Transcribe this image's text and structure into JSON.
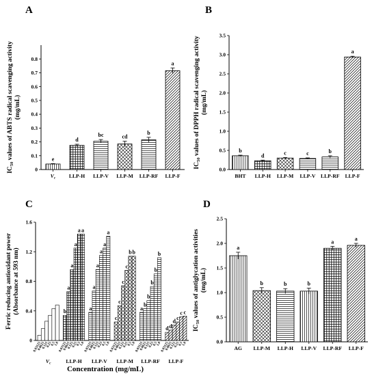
{
  "chart_data": [
    {
      "panel": "A",
      "type": "bar",
      "ylabel_main": "IC50 values of ABTS radical scavenging activity",
      "ylabel_unit": "(mg/mL)",
      "ylim": [
        0,
        0.9
      ],
      "yticks": [
        "0",
        "0.1",
        "0.2",
        "0.3",
        "0.4",
        "0.5",
        "0.6",
        "0.7",
        "0.8"
      ],
      "categories": [
        "Vc",
        "LLP-H",
        "LLP-V",
        "LLP-M",
        "LLP-RF",
        "LLP-F"
      ],
      "values": [
        0.04,
        0.175,
        0.205,
        0.185,
        0.215,
        0.715
      ],
      "errors": [
        0.003,
        0.008,
        0.012,
        0.02,
        0.018,
        0.02
      ],
      "letters": [
        "e",
        "d",
        "bc",
        "cd",
        "b",
        "a"
      ],
      "patterns": [
        "vlines",
        "grid",
        "hlines",
        "diamond",
        "hlines",
        "diag"
      ]
    },
    {
      "panel": "B",
      "type": "bar",
      "ylabel_main": "IC50 values of DPPH radical scavenging activity",
      "ylabel_unit": "(mg/mL)",
      "ylim": [
        0,
        3.5
      ],
      "yticks": [
        "0.0",
        "0.5",
        "1.0",
        "1.5",
        "2.0",
        "2.5",
        "3.0",
        "3.5"
      ],
      "categories": [
        "BHT",
        "LLP-H",
        "LLP-M",
        "LLP-V",
        "LLP-RF",
        "LLP-F"
      ],
      "values": [
        0.36,
        0.23,
        0.3,
        0.29,
        0.33,
        2.94
      ],
      "errors": [
        0.015,
        0.015,
        0.015,
        0.015,
        0.03,
        0.02
      ],
      "letters": [
        "b",
        "d",
        "c",
        "c",
        "b",
        "a"
      ],
      "patterns": [
        "vlines",
        "grid",
        "diamond",
        "hlines",
        "hlines",
        "diag"
      ]
    },
    {
      "panel": "C",
      "type": "bar",
      "ylabel_main": "Ferric reducing antioxidant power",
      "ylabel_unit": "(Absorbance at 593 nm)",
      "xlabel": "Concentration (mg/mL)",
      "ylim": [
        0,
        1.6
      ],
      "yticks": [
        "0",
        "0.4",
        "0.8",
        "1.2",
        "1.6"
      ],
      "concentrations": [
        "0.03125",
        "0.0625",
        "0.125",
        "0.25",
        "0.5",
        "1.0"
      ],
      "groups": [
        {
          "name": "Vc",
          "values": [
            0.07,
            0.16,
            0.26,
            0.34,
            0.43,
            0.48
          ],
          "letters": [],
          "pattern": "plain"
        },
        {
          "name": "LLP-H",
          "values": [
            0.34,
            0.66,
            0.96,
            1.25,
            1.44,
            1.44
          ],
          "letters": [
            "b",
            "a",
            "a",
            "a",
            "a",
            "a"
          ],
          "pattern": "grid"
        },
        {
          "name": "LLP-V",
          "values": [
            0.38,
            0.67,
            0.96,
            1.15,
            1.25,
            1.41
          ],
          "letters": [
            "a",
            "a",
            "a",
            "a",
            "a",
            "a"
          ],
          "pattern": "hlines"
        },
        {
          "name": "LLP-M",
          "values": [
            0.25,
            0.47,
            0.74,
            0.95,
            1.14,
            1.14
          ],
          "letters": [
            "c",
            "c",
            "c",
            "c",
            "b",
            "b"
          ],
          "pattern": "diamond"
        },
        {
          "name": "LLP-RF",
          "values": [
            0.38,
            0.43,
            0.54,
            0.73,
            0.9,
            1.12
          ],
          "letters": [
            "a",
            "b",
            "b",
            "b",
            "b",
            "b"
          ],
          "pattern": "hlines"
        },
        {
          "name": "LLP-F",
          "values": [
            0.11,
            0.14,
            0.21,
            0.25,
            0.32,
            0.33
          ],
          "letters": [
            "d",
            "d",
            "d",
            "c",
            "c",
            "c"
          ],
          "pattern": "diag"
        }
      ]
    },
    {
      "panel": "D",
      "type": "bar",
      "ylabel_main": "IC50 values of antiglycation activities",
      "ylabel_unit": "(mg/mL)",
      "ylim": [
        0,
        2.5
      ],
      "yticks": [
        "0.0",
        "0.5",
        "1.0",
        "1.5",
        "2.0",
        "2.5"
      ],
      "categories": [
        "AG",
        "LLP-M",
        "LLP-H",
        "LLP-V",
        "LLP-RF",
        "LLP-F"
      ],
      "values": [
        1.75,
        1.04,
        1.03,
        1.03,
        1.9,
        1.96
      ],
      "errors": [
        0.07,
        0.06,
        0.05,
        0.06,
        0.04,
        0.04
      ],
      "letters": [
        "a",
        "b",
        "b",
        "b",
        "a",
        "a"
      ],
      "patterns": [
        "vlines",
        "diamond",
        "hlines",
        "vlines",
        "grid",
        "diag"
      ]
    }
  ]
}
